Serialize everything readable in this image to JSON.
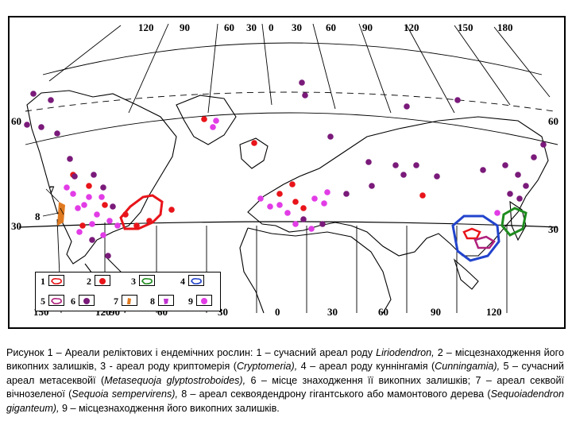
{
  "map": {
    "top_labels": [
      "120",
      "90",
      "60",
      "30",
      "0",
      "30",
      "60",
      "90",
      "120",
      "150",
      "180"
    ],
    "bottom_labels": [
      "150",
      "120",
      "90",
      "60",
      "30",
      "0",
      "30",
      "60",
      "90",
      "120"
    ],
    "left_labels": [
      "60",
      "30"
    ],
    "right_labels": [
      "60",
      "30"
    ],
    "callouts": {
      "seven": "7",
      "eight": "8"
    },
    "colors": {
      "relict_fossil": "#e8141a",
      "cryptomeria": "#1e8c1e",
      "metasequoia_fossil": "#7a1a7a",
      "cunninghamia": "#2244cc",
      "sequoia": "#e07a20",
      "sequoiadendron_fossil": "#e23ce6",
      "metasequoia_range": "#b0207c"
    }
  },
  "legend": {
    "items": [
      {
        "num": "1",
        "symbol": "red-outline-icon"
      },
      {
        "num": "2",
        "symbol": "red-dot-icon"
      },
      {
        "num": "3",
        "symbol": "green-outline-icon"
      },
      {
        "num": "4",
        "symbol": "blue-outline-icon"
      },
      {
        "num": "5",
        "symbol": "purple-outline-icon"
      },
      {
        "num": "6",
        "symbol": "purple-dot-icon"
      },
      {
        "num": "7",
        "symbol": "orange-hatch-icon"
      },
      {
        "num": "8",
        "symbol": "violet-blob-icon"
      },
      {
        "num": "9",
        "symbol": "magenta-dot-icon"
      }
    ]
  },
  "caption": {
    "p1": "Рисунок 1 – Ареали реліктових і ендемічних рослин: 1 – сучасний ареал роду ",
    "t1": "Liriodendron,",
    "p2": " 2 – місцезнаходження його викопних залишків, 3 - ареал роду криптомерія (",
    "t2": "Cryptomeria),",
    "p3": " 4 – ареал роду куннінгамія (",
    "t3": "Cunningamia),",
    "p4": " 5 – сучасний ареал метасеквойї (",
    "t4": "Metasequoja glyptostroboides),",
    "p5": " 6 – місце знаходження її викопних залишків; 7 – ареал секвойї вічнозеленої (",
    "t5": "Sequoia sempervirens),",
    "p6": " 8 – ареал секвоядендрону гігантського або мамонтового дерева (",
    "t6": "Sequoiadendron giganteum),",
    "p7": " 9 – місцезнаходження його викопних залишків."
  }
}
